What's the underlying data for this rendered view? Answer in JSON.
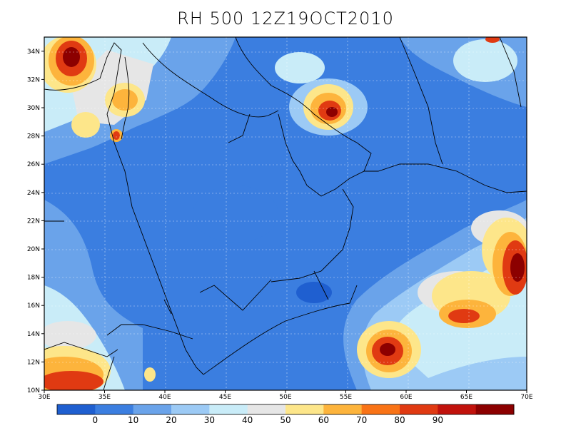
{
  "title": "RH 500  12Z19OCT2010",
  "axes": {
    "x_labels": [
      "30E",
      "35E",
      "40E",
      "45E",
      "50E",
      "55E",
      "60E",
      "65E",
      "70E"
    ],
    "y_labels": [
      "10N",
      "12N",
      "14N",
      "16N",
      "18N",
      "20N",
      "22N",
      "24N",
      "26N",
      "28N",
      "30N",
      "32N",
      "34N"
    ],
    "lon_range": [
      30,
      70
    ],
    "lat_range": [
      10,
      35
    ]
  },
  "colorbar": {
    "labels": [
      "0",
      "10",
      "20",
      "30",
      "40",
      "50",
      "60",
      "70",
      "80",
      "90"
    ],
    "colors": [
      "#1f5fd0",
      "#3b7ee0",
      "#6aa3ea",
      "#9ccaf5",
      "#c9ecf8",
      "#e6e6e6",
      "#fde68a",
      "#fdb43c",
      "#f97316",
      "#e03a12",
      "#c1120c",
      "#8c0000"
    ]
  }
}
